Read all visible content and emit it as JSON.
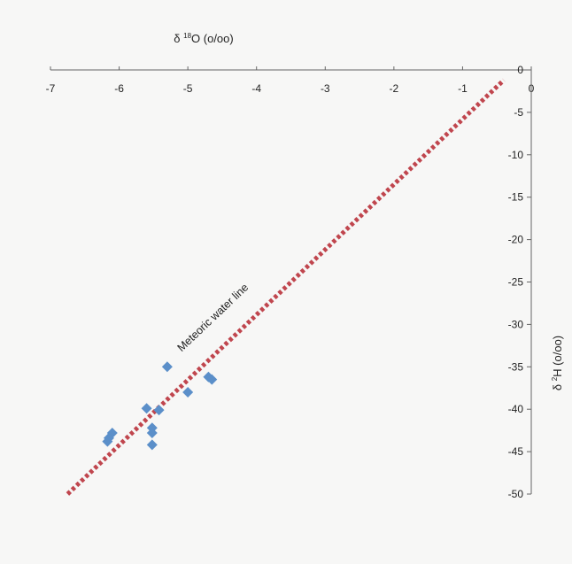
{
  "chart_data": {
    "type": "scatter",
    "title": "",
    "xlabel": {
      "main": "δ ",
      "sup": "18",
      "rest": "O (o/oo)"
    },
    "ylabel": {
      "main": "δ ",
      "sup": "2",
      "rest": "H (o/oo)"
    },
    "xlim": [
      -7,
      0
    ],
    "ylim": [
      -50,
      0
    ],
    "x_ticks": [
      -7,
      -6,
      -5,
      -4,
      -3,
      -2,
      -1,
      0
    ],
    "y_ticks": [
      0,
      -5,
      -10,
      -15,
      -20,
      -25,
      -30,
      -35,
      -40,
      -45,
      -50
    ],
    "x_axis_position": "top",
    "y_axis_position": "right",
    "grid": false,
    "legend": "none",
    "series": [
      {
        "marker": "diamond",
        "color": "#5b8fc9",
        "points": [
          {
            "x": -5.3,
            "y": -35.0
          },
          {
            "x": -4.7,
            "y": -36.2
          },
          {
            "x": -4.65,
            "y": -36.5
          },
          {
            "x": -5.0,
            "y": -38.0
          },
          {
            "x": -5.6,
            "y": -39.9
          },
          {
            "x": -5.42,
            "y": -40.1
          },
          {
            "x": -5.52,
            "y": -42.2
          },
          {
            "x": -5.52,
            "y": -42.8
          },
          {
            "x": -5.52,
            "y": -44.2
          },
          {
            "x": -6.1,
            "y": -42.8
          },
          {
            "x": -6.15,
            "y": -43.4
          },
          {
            "x": -6.17,
            "y": -43.8
          }
        ]
      }
    ],
    "lines": [
      {
        "label": "Meteoric water line",
        "style": "dotted",
        "color": "#c0464e",
        "from": {
          "x": -6.75,
          "y": -50
        },
        "to": {
          "x": -0.4,
          "y": -1.2
        }
      }
    ]
  }
}
